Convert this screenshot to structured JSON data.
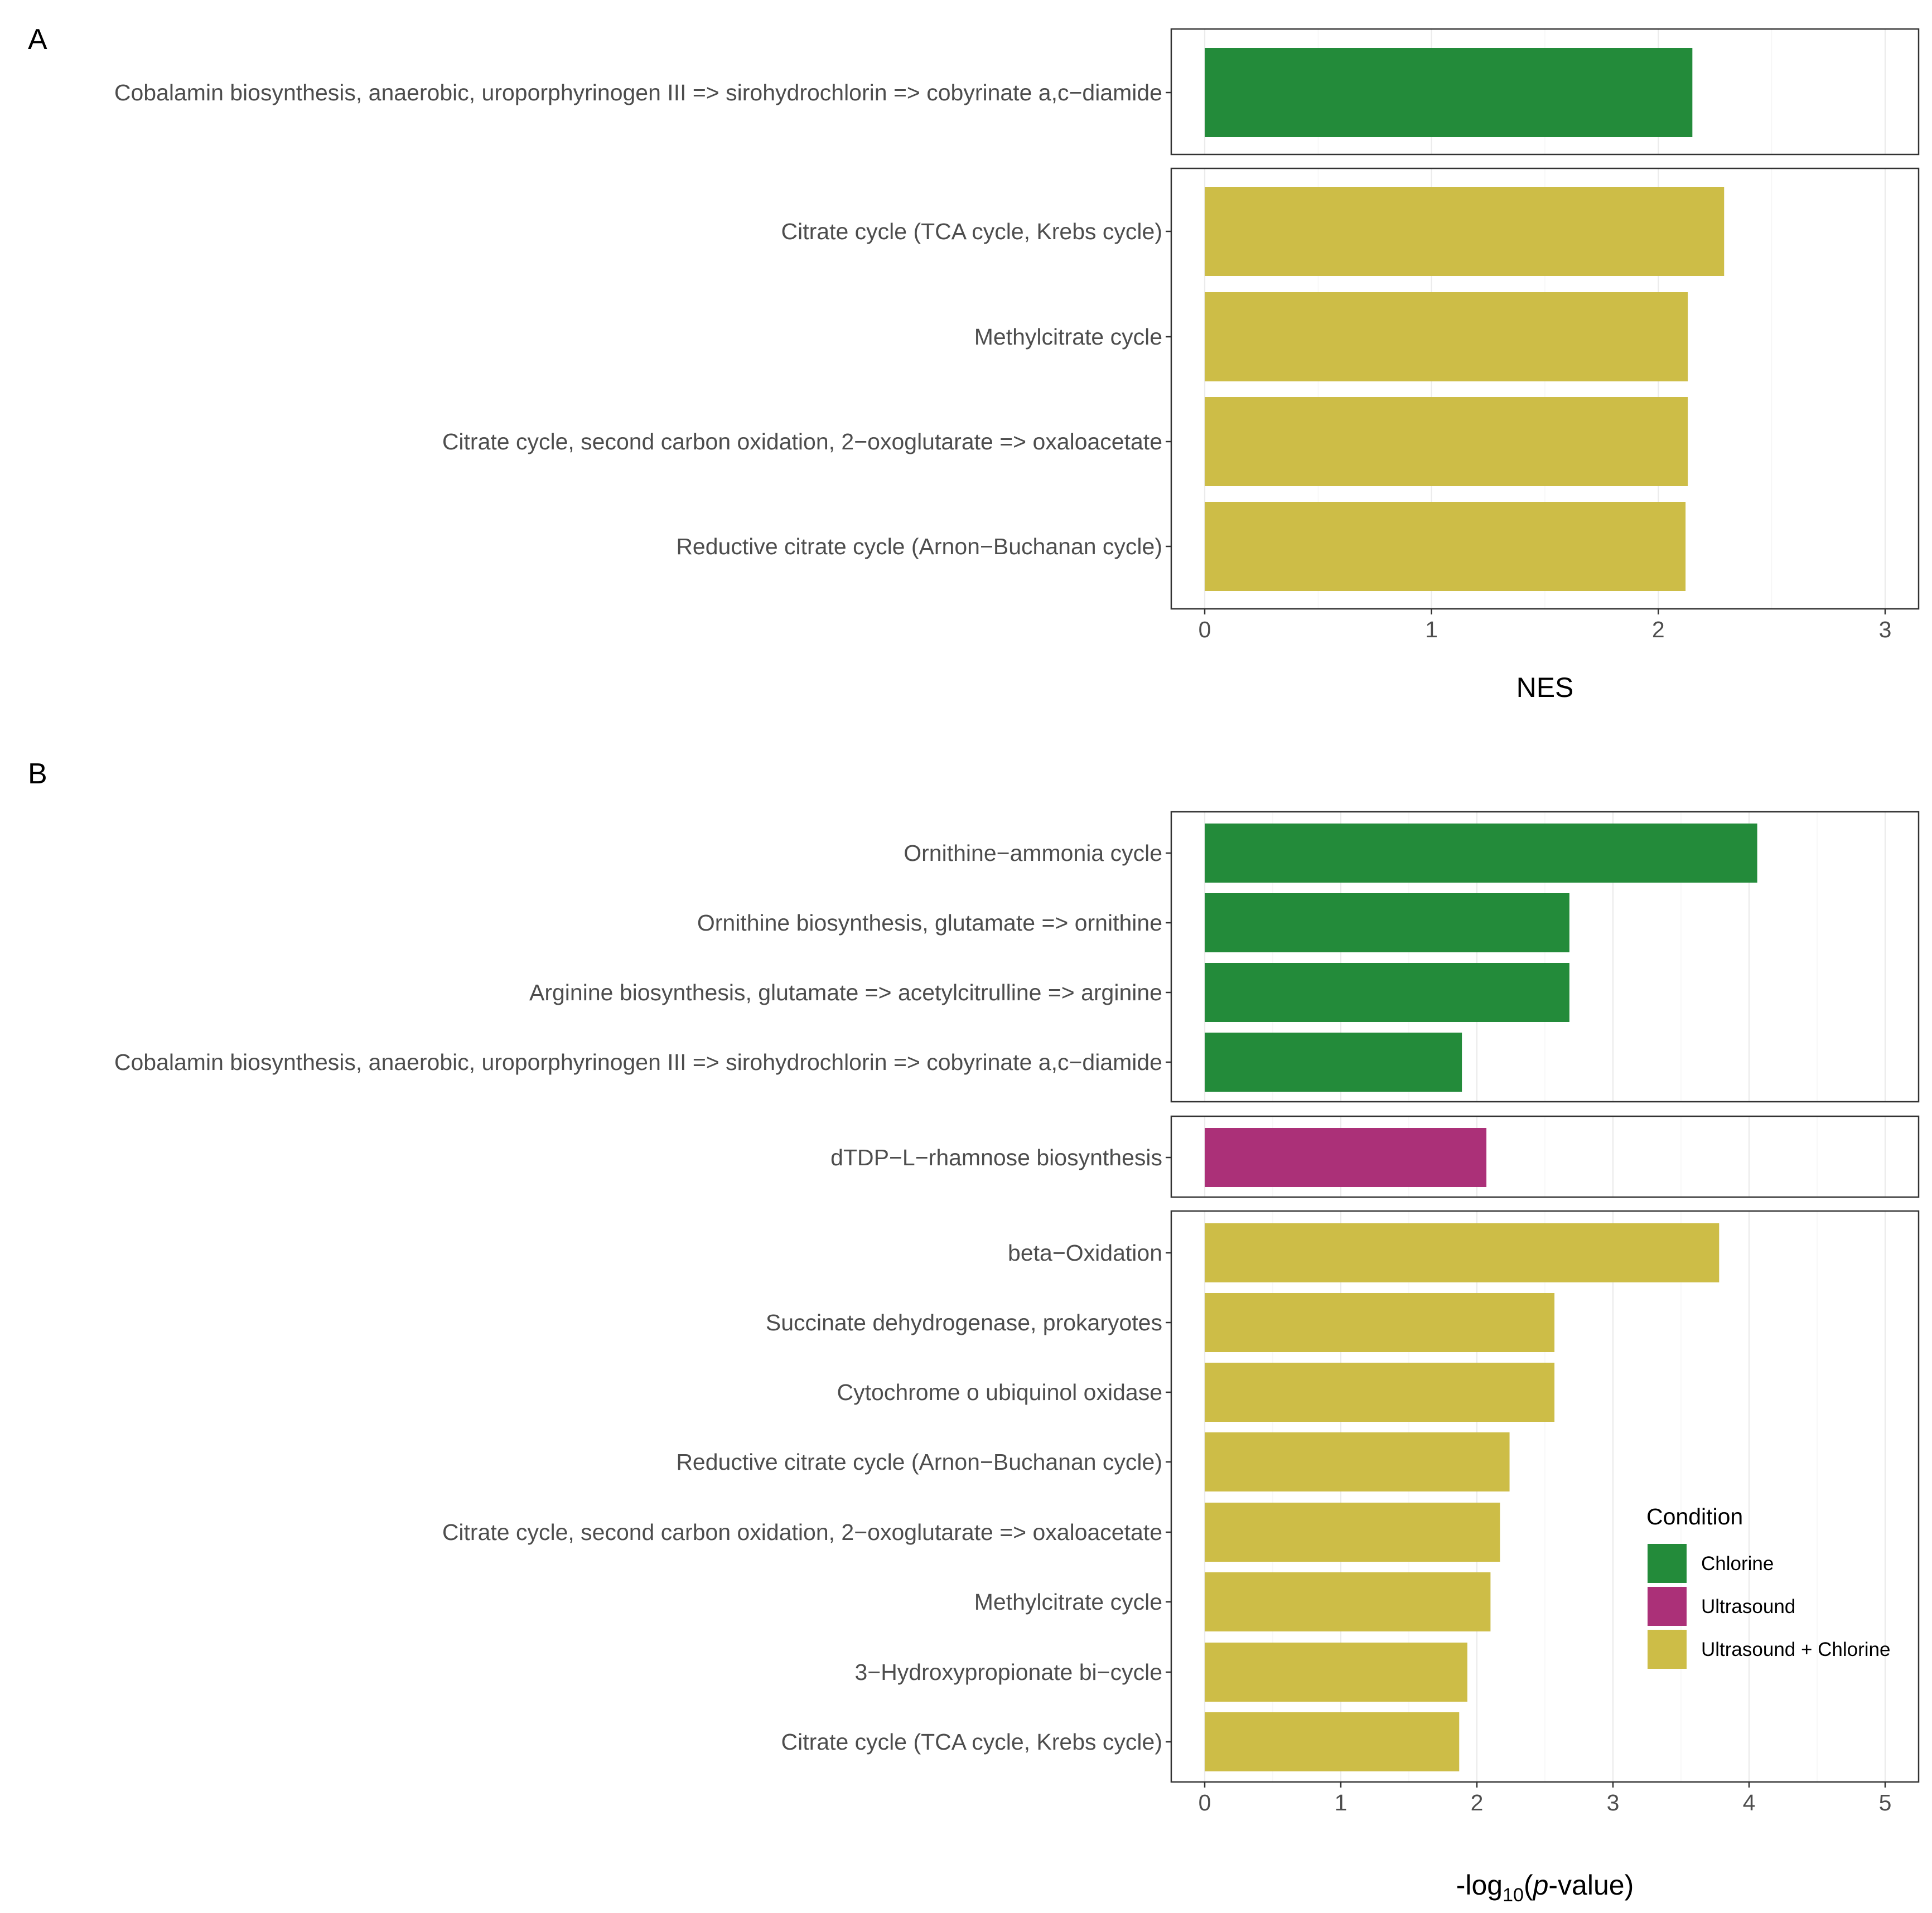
{
  "colors": {
    "Chlorine": "#238b3a",
    "Ultrasound": "#ab3078",
    "Ultrasound + Chlorine": "#cdbd47"
  },
  "chart_data": [
    {
      "type": "bar",
      "orientation": "horizontal",
      "panel_label": "A",
      "xlabel": "NES",
      "xlim": [
        0,
        3
      ],
      "x_ticks": [
        0,
        1,
        2,
        3
      ],
      "facets": [
        {
          "condition": "Chlorine",
          "categories": [
            "Cobalamin biosynthesis, anaerobic, uroporphyrinogen III => sirohydrochlorin => cobyrinate a,c−diamide"
          ],
          "values": [
            2.15
          ]
        },
        {
          "condition": "Ultrasound + Chlorine",
          "categories": [
            "Citrate cycle (TCA cycle, Krebs cycle)",
            "Methylcitrate cycle",
            "Citrate cycle, second carbon oxidation, 2−oxoglutarate => oxaloacetate",
            "Reductive citrate cycle (Arnon−Buchanan cycle)"
          ],
          "values": [
            2.29,
            2.13,
            2.13,
            2.12
          ]
        }
      ]
    },
    {
      "type": "bar",
      "orientation": "horizontal",
      "panel_label": "B",
      "xlabel": "-log₁₀(p-value)",
      "xlabel_parts": [
        "-log",
        "10",
        "(",
        "p",
        "-value)"
      ],
      "xlim": [
        0,
        5
      ],
      "x_ticks": [
        0,
        1,
        2,
        3,
        4,
        5
      ],
      "facets": [
        {
          "condition": "Chlorine",
          "categories": [
            "Ornithine−ammonia cycle",
            "Ornithine biosynthesis, glutamate => ornithine",
            "Arginine biosynthesis, glutamate => acetylcitrulline => arginine",
            "Cobalamin biosynthesis, anaerobic, uroporphyrinogen III => sirohydrochlorin => cobyrinate a,c−diamide"
          ],
          "values": [
            4.06,
            2.68,
            2.68,
            1.89
          ]
        },
        {
          "condition": "Ultrasound",
          "categories": [
            "dTDP−L−rhamnose biosynthesis"
          ],
          "values": [
            2.07
          ]
        },
        {
          "condition": "Ultrasound + Chlorine",
          "categories": [
            "beta−Oxidation",
            "Succinate dehydrogenase, prokaryotes",
            "Cytochrome o ubiquinol oxidase",
            "Reductive citrate cycle (Arnon−Buchanan cycle)",
            "Citrate cycle, second carbon oxidation, 2−oxoglutarate => oxaloacetate",
            "Methylcitrate cycle",
            "3−Hydroxypropionate bi−cycle",
            "Citrate cycle (TCA cycle, Krebs cycle)"
          ],
          "values": [
            3.78,
            2.57,
            2.57,
            2.24,
            2.17,
            2.1,
            1.93,
            1.87
          ]
        }
      ]
    }
  ],
  "legend": {
    "title": "Condition",
    "placement": "bottom-right",
    "items": [
      {
        "label": "Chlorine",
        "key": "Chlorine"
      },
      {
        "label": "Ultrasound",
        "key": "Ultrasound"
      },
      {
        "label": "Ultrasound + Chlorine",
        "key": "Ultrasound + Chlorine"
      }
    ]
  }
}
